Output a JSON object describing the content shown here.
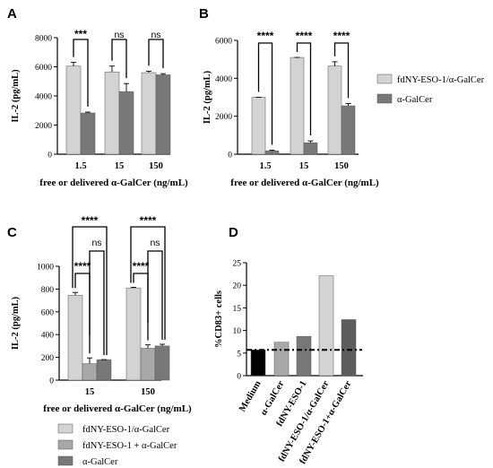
{
  "colors": {
    "fdNY": "#d3d3d3",
    "fdNY_plus": "#a8a8a8",
    "aGalCer": "#787878",
    "black": "#000000",
    "D_bars": [
      "#000000",
      "#a8a8a8",
      "#787878",
      "#d3d3d3",
      "#5c5c5c"
    ]
  },
  "chart_data": [
    {
      "panel": "A",
      "type": "bar",
      "categories": [
        "1.5",
        "15",
        "150"
      ],
      "xlabel": "free or delivered α-GalCer (ng/mL)",
      "ylabel": "IL-2 (pg/mL)",
      "ylim": [
        0,
        8000
      ],
      "yticks": [
        "0",
        "2000",
        "4000",
        "6000",
        "8000"
      ],
      "series": [
        {
          "key": "fdNY",
          "values": [
            6050,
            5650,
            5600
          ],
          "errors": [
            250,
            400,
            100
          ]
        },
        {
          "key": "aGalCer",
          "values": [
            2830,
            4300,
            5450
          ],
          "errors": [
            60,
            550,
            80
          ]
        }
      ],
      "significance": [
        "***",
        "ns",
        "ns"
      ]
    },
    {
      "panel": "B",
      "type": "bar",
      "categories": [
        "1.5",
        "15",
        "150"
      ],
      "xlabel": "free or delivered α-GalCer (ng/mL)",
      "ylabel": "IL-2 (pg/mL)",
      "ylim": [
        0,
        6000
      ],
      "yticks": [
        "0",
        "2000",
        "4000",
        "6000"
      ],
      "series": [
        {
          "name": "fdNY-ESO-1/α-GalCer",
          "key": "fdNY",
          "values": [
            3000,
            5100,
            4650
          ],
          "errors": [
            0,
            0,
            220
          ]
        },
        {
          "name": "α-GalCer",
          "key": "aGalCer",
          "values": [
            180,
            600,
            2550
          ],
          "errors": [
            30,
            100,
            120
          ]
        }
      ],
      "significance": [
        "****",
        "****",
        "****"
      ],
      "legend": "right"
    },
    {
      "panel": "C",
      "type": "bar",
      "categories": [
        "15",
        "150"
      ],
      "xlabel": "free or delivered α-GalCer (ng/mL)",
      "ylabel": "IL-2 (pg/mL)",
      "ylim": [
        0,
        1000
      ],
      "yticks": [
        "0",
        "200",
        "400",
        "600",
        "800",
        "1000"
      ],
      "series": [
        {
          "name": "fdNY-ESO-1/α-GalCer",
          "key": "fdNY",
          "values": [
            745,
            810
          ],
          "errors": [
            25,
            5
          ]
        },
        {
          "name": "fdNY-ESO-1 + α-GalCer",
          "key": "fdNY_plus",
          "values": [
            145,
            280
          ],
          "errors": [
            50,
            30
          ]
        },
        {
          "name": "α-GalCer",
          "key": "aGalCer",
          "values": [
            180,
            300
          ],
          "errors": [
            0,
            15
          ]
        }
      ],
      "significance": [
        [
          "****",
          "****",
          "ns"
        ],
        [
          "****",
          "****",
          "ns"
        ]
      ],
      "legend": "bottom"
    },
    {
      "panel": "D",
      "type": "bar",
      "categories": [
        "Medium",
        "α-GalCer",
        "fdNY-ESO-1",
        "fdNY-ESO-1/α-GalCer",
        "fdNY-ESO-1+α-GalCer"
      ],
      "values": [
        5.7,
        7.4,
        8.7,
        22.1,
        12.4
      ],
      "ylabel": "%CD83+ cells",
      "ylim": [
        0,
        25
      ],
      "yticks": [
        "0",
        "5",
        "10",
        "15",
        "20",
        "25"
      ],
      "reference_line": 5.7
    }
  ]
}
